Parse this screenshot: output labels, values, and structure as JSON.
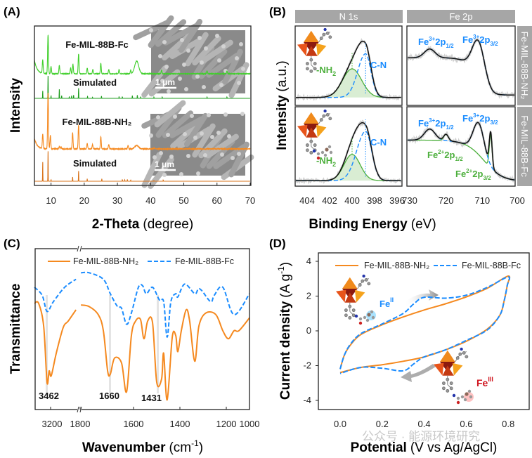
{
  "colors": {
    "green_exp": "#3fcf2a",
    "green_sim": "#1f9e1f",
    "orange_exp": "#f5891f",
    "orange_sim": "#d9731a",
    "blue": "#1a8cff",
    "fit_green": "#4caf3c",
    "black": "#111111",
    "raw_gray": "#cfcfcf",
    "sem_gray": "#8a8a8a",
    "header_gray": "#a6a6a6",
    "fe3_label": "#1a8cff",
    "fe2_label": "#d0141e"
  },
  "watermark": "公众号 · 能源环境研究",
  "chart_data": [
    {
      "panel": "(A)",
      "type": "line",
      "xlabel_bold": "2-Theta",
      "xlabel_unit": "(degree)",
      "ylabel": "Intensity",
      "xlim": [
        5,
        70
      ],
      "xticks": [
        10,
        20,
        30,
        40,
        50,
        60,
        70
      ],
      "scale_bar": "1 μm",
      "series": [
        {
          "name": "Fe-MIL-88B-Fc",
          "kind": "experimental",
          "color": "#3fcf2a",
          "low_angle_background": 35,
          "peaks": [
            [
              7.5,
              35
            ],
            [
              9.1,
              100
            ],
            [
              10,
              18
            ],
            [
              12.5,
              22
            ],
            [
              15.9,
              15
            ],
            [
              16.6,
              25
            ],
            [
              18.3,
              51
            ],
            [
              20.9,
              15
            ],
            [
              22.6,
              11
            ],
            [
              25,
              27
            ],
            [
              27.4,
              11
            ],
            [
              30.5,
              11
            ],
            [
              34,
              9
            ],
            [
              35.8,
              33
            ],
            [
              43.3,
              9
            ],
            [
              57,
              7
            ],
            [
              63,
              7
            ]
          ]
        },
        {
          "name": "Simulated",
          "kind": "simulated",
          "color": "#1f9e1f",
          "peaks": [
            [
              7.5,
              33
            ],
            [
              9.1,
              100
            ],
            [
              10,
              10
            ],
            [
              12.5,
              39
            ],
            [
              13.2,
              12
            ],
            [
              15.5,
              8
            ],
            [
              16.2,
              12
            ],
            [
              16.8,
              14
            ],
            [
              18.3,
              45
            ],
            [
              21,
              8
            ],
            [
              22.5,
              5
            ],
            [
              25.2,
              10
            ],
            [
              30.5,
              8
            ],
            [
              31.5,
              6
            ],
            [
              34.5,
              12
            ],
            [
              36,
              14
            ],
            [
              37,
              6
            ],
            [
              41,
              5
            ],
            [
              43.5,
              6
            ],
            [
              57,
              6
            ],
            [
              63,
              6
            ]
          ]
        },
        {
          "name": "Fe-MIL-88B-NH₂",
          "kind": "experimental",
          "color": "#f5891f",
          "low_angle_background": 19,
          "peaks": [
            [
              7.5,
              26
            ],
            [
              9.1,
              100
            ],
            [
              9.8,
              24
            ],
            [
              12.5,
              4
            ],
            [
              13,
              4
            ],
            [
              16.5,
              29
            ],
            [
              18.3,
              42
            ],
            [
              20.9,
              10
            ],
            [
              22.5,
              8
            ],
            [
              25,
              22
            ],
            [
              27.4,
              8
            ],
            [
              33.2,
              6
            ],
            [
              35.8,
              6
            ],
            [
              41,
              2
            ]
          ]
        },
        {
          "name": "Simulated",
          "kind": "simulated",
          "color": "#d9731a",
          "peaks": [
            [
              7.5,
              64
            ],
            [
              9.1,
              100
            ],
            [
              10,
              5
            ],
            [
              16.5,
              14
            ],
            [
              18.3,
              34
            ],
            [
              20.9,
              8
            ],
            [
              25.3,
              8
            ],
            [
              31.5,
              5
            ],
            [
              32.2,
              5
            ],
            [
              33,
              6
            ],
            [
              34,
              4
            ],
            [
              41,
              2
            ],
            [
              43.8,
              4
            ]
          ]
        }
      ]
    },
    {
      "panel": "(B)",
      "type": "line",
      "xlabel_bold": "Binding Energy",
      "xlabel_unit": "(eV)",
      "ylabel_bold": "Intensity",
      "ylabel_unit": "(a.u.)",
      "column_headers": [
        "N 1s",
        "Fe 2p"
      ],
      "row_headers": [
        "Fe-MIL-88B-NH₂",
        "Fe-MIL-88B-Fc"
      ],
      "n1s_xlim": [
        405,
        395
      ],
      "n1s_xticks": [
        404,
        402,
        400,
        398,
        396
      ],
      "fe2p_xlim": [
        731,
        700
      ],
      "fe2p_xticks": [
        730,
        720,
        710,
        700
      ],
      "labels": {
        "nh2": {
          "base": "-NH",
          "sub": "2"
        },
        "cn": "C-N",
        "fe3_12": {
          "base": "Fe",
          "sup": "3+",
          "mid": "2p",
          "sub": "1/2"
        },
        "fe3_32": {
          "base": "Fe",
          "sup": "3+",
          "mid": "2p",
          "sub": "3/2"
        },
        "fe2_12": {
          "base": "Fe",
          "sup": "2+",
          "mid": "2p",
          "sub": "1/2"
        },
        "fe2_32": {
          "base": "Fe",
          "sup": "2+",
          "mid": "2p",
          "sub": "3/2"
        }
      },
      "fits": {
        "n1s_nh2": {
          "background": 0.1,
          "components": {
            "nh2": {
              "center": 400,
              "amp": 0.36,
              "fwhm": 2.0
            },
            "cn": {
              "center": 398.8,
              "amp": 0.55,
              "fwhm": 1.5
            }
          }
        },
        "n1s_fc": {
          "background": 0.07,
          "components": {
            "nh2": {
              "center": 400,
              "amp": 0.33,
              "fwhm": 1.7
            },
            "cn": {
              "center": 398.8,
              "amp": 0.62,
              "fwhm": 1.7
            }
          }
        },
        "fe2p_nh2": {
          "background_step": {
            "low": 0.13,
            "high": 0.47,
            "center": 712,
            "width": 1.5
          },
          "fe3": [
            {
              "center": 724.5,
              "amp": 0.11,
              "fwhm": 3.5
            },
            {
              "center": 711,
              "amp": 0.52,
              "fwhm": 4.0
            }
          ],
          "fe2": []
        },
        "fe2p_fc": {
          "background_step": {
            "low": 0.06,
            "high": 0.52,
            "center": 709.5,
            "width": 2.5
          },
          "fe3": [
            {
              "center": 724.5,
              "amp": 0.14,
              "fwhm": 3.5
            },
            {
              "center": 711,
              "amp": 0.4,
              "fwhm": 3.5
            }
          ],
          "fe2": [
            {
              "center": 720,
              "amp": 0.08,
              "fwhm": 1.5
            },
            {
              "center": 707.7,
              "amp": 0.42,
              "fwhm": 0.9
            }
          ]
        }
      }
    },
    {
      "panel": "(C)",
      "type": "line",
      "xlabel_bold": "Wavenumber",
      "xlabel_unit": {
        "base": "(cm",
        "sup": "-1",
        "end": ")"
      },
      "ylabel": "Transmittance",
      "xticks": [
        3200,
        1800,
        1600,
        1400,
        1200,
        1000
      ],
      "axis_break": true,
      "annotations": [
        "3462",
        "1660",
        "1431"
      ],
      "series": [
        {
          "name": "Fe-MIL-88B-NH₂",
          "style": "solid",
          "color": "#f5891f",
          "left": [
            [
              3300,
              66
            ],
            [
              3274,
              66
            ],
            [
              3243,
              52
            ],
            [
              3222,
              17
            ],
            [
              3209,
              24
            ],
            [
              3196,
              21
            ],
            [
              3165,
              35
            ],
            [
              3122,
              51
            ],
            [
              3091,
              55
            ],
            [
              3043,
              62
            ]
          ],
          "right": [
            [
              1797,
              65
            ],
            [
              1766,
              64
            ],
            [
              1732,
              59
            ],
            [
              1713,
              49
            ],
            [
              1697,
              24
            ],
            [
              1687,
              22
            ],
            [
              1671,
              32
            ],
            [
              1645,
              29
            ],
            [
              1626,
              11
            ],
            [
              1608,
              46
            ],
            [
              1591,
              55
            ],
            [
              1570,
              56
            ],
            [
              1555,
              44
            ],
            [
              1539,
              55
            ],
            [
              1518,
              54
            ],
            [
              1500,
              17
            ],
            [
              1479,
              19
            ],
            [
              1470,
              35
            ],
            [
              1455,
              6
            ],
            [
              1433,
              45
            ],
            [
              1418,
              46
            ],
            [
              1409,
              36
            ],
            [
              1394,
              49
            ],
            [
              1373,
              62
            ],
            [
              1358,
              55
            ],
            [
              1336,
              30
            ],
            [
              1318,
              52
            ],
            [
              1288,
              60
            ],
            [
              1245,
              59
            ],
            [
              1215,
              49
            ],
            [
              1182,
              44
            ],
            [
              1133,
              49
            ],
            [
              1091,
              49
            ],
            [
              1000,
              57
            ]
          ]
        },
        {
          "name": "Fe-MIL-88B-Fc",
          "style": "dashed",
          "color": "#1a8cff",
          "left": [
            [
              3300,
              76
            ],
            [
              3252,
              71
            ],
            [
              3222,
              61
            ],
            [
              3183,
              67
            ],
            [
              3113,
              76
            ],
            [
              3043,
              81
            ]
          ],
          "right": [
            [
              1797,
              85
            ],
            [
              1766,
              85
            ],
            [
              1713,
              81
            ],
            [
              1687,
              72
            ],
            [
              1660,
              64
            ],
            [
              1645,
              63
            ],
            [
              1626,
              53
            ],
            [
              1608,
              60
            ],
            [
              1579,
              76
            ],
            [
              1561,
              77
            ],
            [
              1545,
              72
            ],
            [
              1518,
              76
            ],
            [
              1488,
              68
            ],
            [
              1470,
              67
            ],
            [
              1455,
              45
            ],
            [
              1439,
              67
            ],
            [
              1418,
              72
            ],
            [
              1409,
              70
            ],
            [
              1379,
              78
            ],
            [
              1336,
              72
            ],
            [
              1321,
              75
            ],
            [
              1306,
              74
            ],
            [
              1267,
              67
            ],
            [
              1252,
              71
            ],
            [
              1215,
              76
            ],
            [
              1133,
              59
            ],
            [
              1000,
              72
            ]
          ]
        }
      ]
    },
    {
      "panel": "(D)",
      "type": "line",
      "xlabel_bold": "Potential",
      "xlabel_unit": "(V vs Ag/AgCl)",
      "ylabel_bold": "Current density",
      "ylabel_unit": {
        "base": "(A g",
        "sup": "-1",
        "end": ")"
      },
      "xlim": [
        0,
        0.8
      ],
      "ylim": [
        -4,
        4
      ],
      "xticks": [
        "0.0",
        "0.2",
        "0.4",
        "0.6",
        "0.8"
      ],
      "yticks": [
        "4",
        "2",
        "0",
        "-2",
        "-4"
      ],
      "labels": {
        "fe2": {
          "base": "Fe",
          "sup": "II"
        },
        "fe3": {
          "base": "Fe",
          "sup": "III"
        }
      },
      "series": [
        {
          "name": "Fe-MIL-88B-NH₂",
          "style": "solid",
          "color": "#f5891f",
          "points": [
            [
              0,
              -2.2
            ],
            [
              0.02,
              -1.4
            ],
            [
              0.05,
              -0.8
            ],
            [
              0.1,
              -0.2
            ],
            [
              0.2,
              0.35
            ],
            [
              0.3,
              0.8
            ],
            [
              0.4,
              1.2
            ],
            [
              0.5,
              1.55
            ],
            [
              0.6,
              1.95
            ],
            [
              0.7,
              2.45
            ],
            [
              0.8,
              3.15
            ],
            [
              0.795,
              2.6
            ],
            [
              0.78,
              1.7
            ],
            [
              0.76,
              0.9
            ],
            [
              0.7,
              0.1
            ],
            [
              0.6,
              -0.6
            ],
            [
              0.5,
              -1.1
            ],
            [
              0.4,
              -1.5
            ],
            [
              0.3,
              -1.75
            ],
            [
              0.2,
              -1.95
            ],
            [
              0.1,
              -2.1
            ],
            [
              0,
              -2.4
            ]
          ]
        },
        {
          "name": "Fe-MIL-88B-Fc",
          "style": "dashed",
          "color": "#1a8cff",
          "points": [
            [
              0,
              -2.2
            ],
            [
              0.02,
              -1.4
            ],
            [
              0.05,
              -0.75
            ],
            [
              0.1,
              -0.15
            ],
            [
              0.2,
              0.4
            ],
            [
              0.3,
              1.0
            ],
            [
              0.35,
              1.55
            ],
            [
              0.4,
              1.93
            ],
            [
              0.5,
              1.88
            ],
            [
              0.6,
              2.05
            ],
            [
              0.7,
              2.5
            ],
            [
              0.8,
              3.1
            ],
            [
              0.795,
              2.6
            ],
            [
              0.78,
              1.7
            ],
            [
              0.76,
              0.9
            ],
            [
              0.7,
              0.05
            ],
            [
              0.6,
              -0.55
            ],
            [
              0.5,
              -1.1
            ],
            [
              0.4,
              -1.5
            ],
            [
              0.35,
              -1.9
            ],
            [
              0.3,
              -2.3
            ],
            [
              0.2,
              -2.15
            ],
            [
              0.1,
              -2.1
            ],
            [
              0,
              -2.45
            ]
          ]
        }
      ]
    }
  ]
}
